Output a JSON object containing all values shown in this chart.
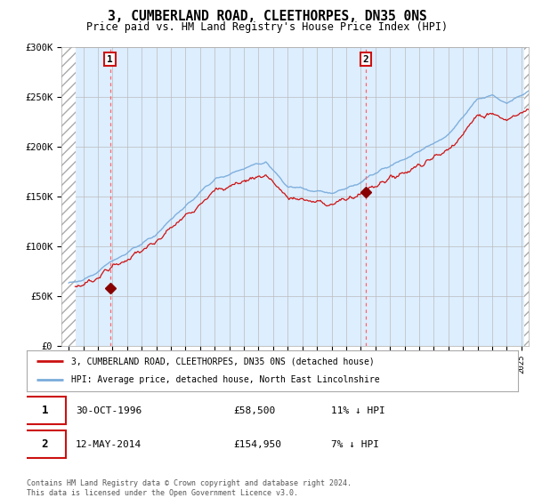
{
  "title": "3, CUMBERLAND ROAD, CLEETHORPES, DN35 0NS",
  "subtitle": "Price paid vs. HM Land Registry's House Price Index (HPI)",
  "title_fontsize": 10.5,
  "subtitle_fontsize": 8.5,
  "ylim": [
    0,
    300000
  ],
  "yticks": [
    0,
    50000,
    100000,
    150000,
    200000,
    250000,
    300000
  ],
  "ytick_labels": [
    "£0",
    "£50K",
    "£100K",
    "£150K",
    "£200K",
    "£250K",
    "£300K"
  ],
  "hpi_color": "#7aacdb",
  "price_color": "#cc1111",
  "marker_color": "#880000",
  "dashed_color": "#ff6666",
  "background_color": "#ffffff",
  "chart_bg_color": "#ddeeff",
  "grid_color": "#bbbbbb",
  "legend_label_price": "3, CUMBERLAND ROAD, CLEETHORPES, DN35 0NS (detached house)",
  "legend_label_hpi": "HPI: Average price, detached house, North East Lincolnshire",
  "transaction1_date": "30-OCT-1996",
  "transaction1_price": "£58,500",
  "transaction1_pct": "11% ↓ HPI",
  "transaction1_year": 1996.83,
  "transaction1_value": 58500,
  "transaction2_date": "12-MAY-2014",
  "transaction2_price": "£154,950",
  "transaction2_pct": "7% ↓ HPI",
  "transaction2_year": 2014.36,
  "transaction2_value": 154950,
  "footer": "Contains HM Land Registry data © Crown copyright and database right 2024.\nThis data is licensed under the Open Government Licence v3.0.",
  "start_year": 1994,
  "end_year": 2025
}
